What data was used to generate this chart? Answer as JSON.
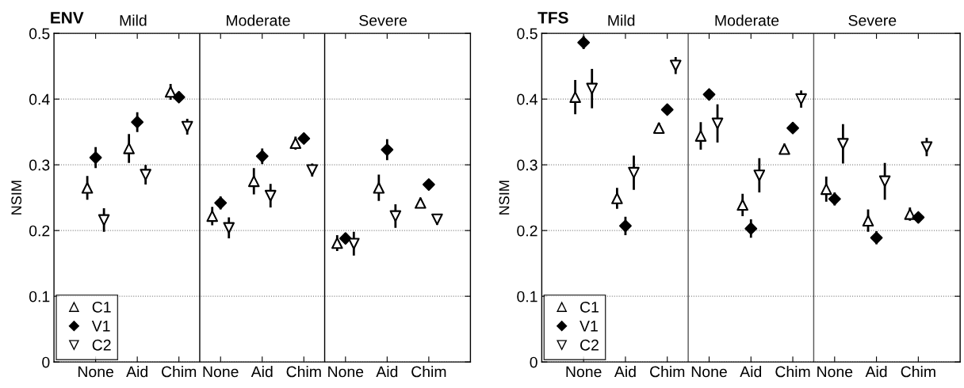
{
  "chart_data": [
    {
      "type": "scatter",
      "title": "ENV",
      "ylabel": "NSIM",
      "ylim": [
        0,
        0.5
      ],
      "yticks": [
        0,
        0.1,
        0.2,
        0.3,
        0.4,
        0.5
      ],
      "categories": [
        "None",
        "Aid",
        "Chim",
        "None",
        "Aid",
        "Chim",
        "None",
        "Aid",
        "Chim"
      ],
      "grid": "y",
      "legend": "bottom left",
      "annotations": [
        "Mild",
        "Moderate",
        "Severe"
      ],
      "series": [
        {
          "name": "C1",
          "color": "#000000",
          "marker": "triangle",
          "values": [
            0.265,
            0.325,
            0.411,
            0.222,
            0.275,
            0.333,
            0.181,
            0.265,
            0.242
          ],
          "errors": [
            0.018,
            0.022,
            0.012,
            0.014,
            0.02,
            0.01,
            0.012,
            0.02,
            0.008
          ]
        },
        {
          "name": "V1",
          "color": "#000000",
          "marker": "diamond",
          "values": [
            0.311,
            0.365,
            0.403,
            0.242,
            0.313,
            0.34,
            0.188,
            0.323,
            0.27
          ],
          "errors": [
            0.016,
            0.015,
            0.006,
            0.01,
            0.012,
            0.005,
            0.008,
            0.016,
            0.005
          ]
        },
        {
          "name": "C2",
          "color": "#000000",
          "marker": "triangle_down",
          "values": [
            0.216,
            0.285,
            0.358,
            0.204,
            0.253,
            0.292,
            0.18,
            0.222,
            0.217
          ],
          "errors": [
            0.018,
            0.015,
            0.012,
            0.016,
            0.018,
            0.01,
            0.018,
            0.018,
            0.008
          ]
        }
      ]
    },
    {
      "type": "scatter",
      "title": "TFS",
      "ylabel": "NSIM",
      "ylim": [
        0,
        0.5
      ],
      "yticks": [
        0,
        0.1,
        0.2,
        0.3,
        0.4,
        0.5
      ],
      "categories": [
        "None",
        "Aid",
        "Chim",
        "None",
        "Aid",
        "Chim",
        "None",
        "Aid",
        "Chim"
      ],
      "grid": "y",
      "legend": "bottom left",
      "annotations": [
        "Mild",
        "Moderate",
        "Severe"
      ],
      "series": [
        {
          "name": "C1",
          "color": "#000000",
          "marker": "triangle",
          "values": [
            0.403,
            0.249,
            0.356,
            0.344,
            0.239,
            0.324,
            0.263,
            0.215,
            0.225
          ],
          "errors": [
            0.026,
            0.016,
            0.008,
            0.021,
            0.017,
            0.008,
            0.019,
            0.017,
            0.01
          ]
        },
        {
          "name": "V1",
          "color": "#000000",
          "marker": "diamond",
          "values": [
            0.486,
            0.207,
            0.384,
            0.407,
            0.203,
            0.356,
            0.248,
            0.189,
            0.22
          ],
          "errors": [
            0.01,
            0.014,
            0.004,
            0.008,
            0.014,
            0.005,
            0.01,
            0.01,
            0.004
          ]
        },
        {
          "name": "C2",
          "color": "#000000",
          "marker": "triangle_down",
          "values": [
            0.416,
            0.288,
            0.451,
            0.363,
            0.284,
            0.4,
            0.332,
            0.275,
            0.327
          ],
          "errors": [
            0.03,
            0.026,
            0.013,
            0.029,
            0.026,
            0.013,
            0.03,
            0.028,
            0.014
          ]
        }
      ]
    }
  ]
}
